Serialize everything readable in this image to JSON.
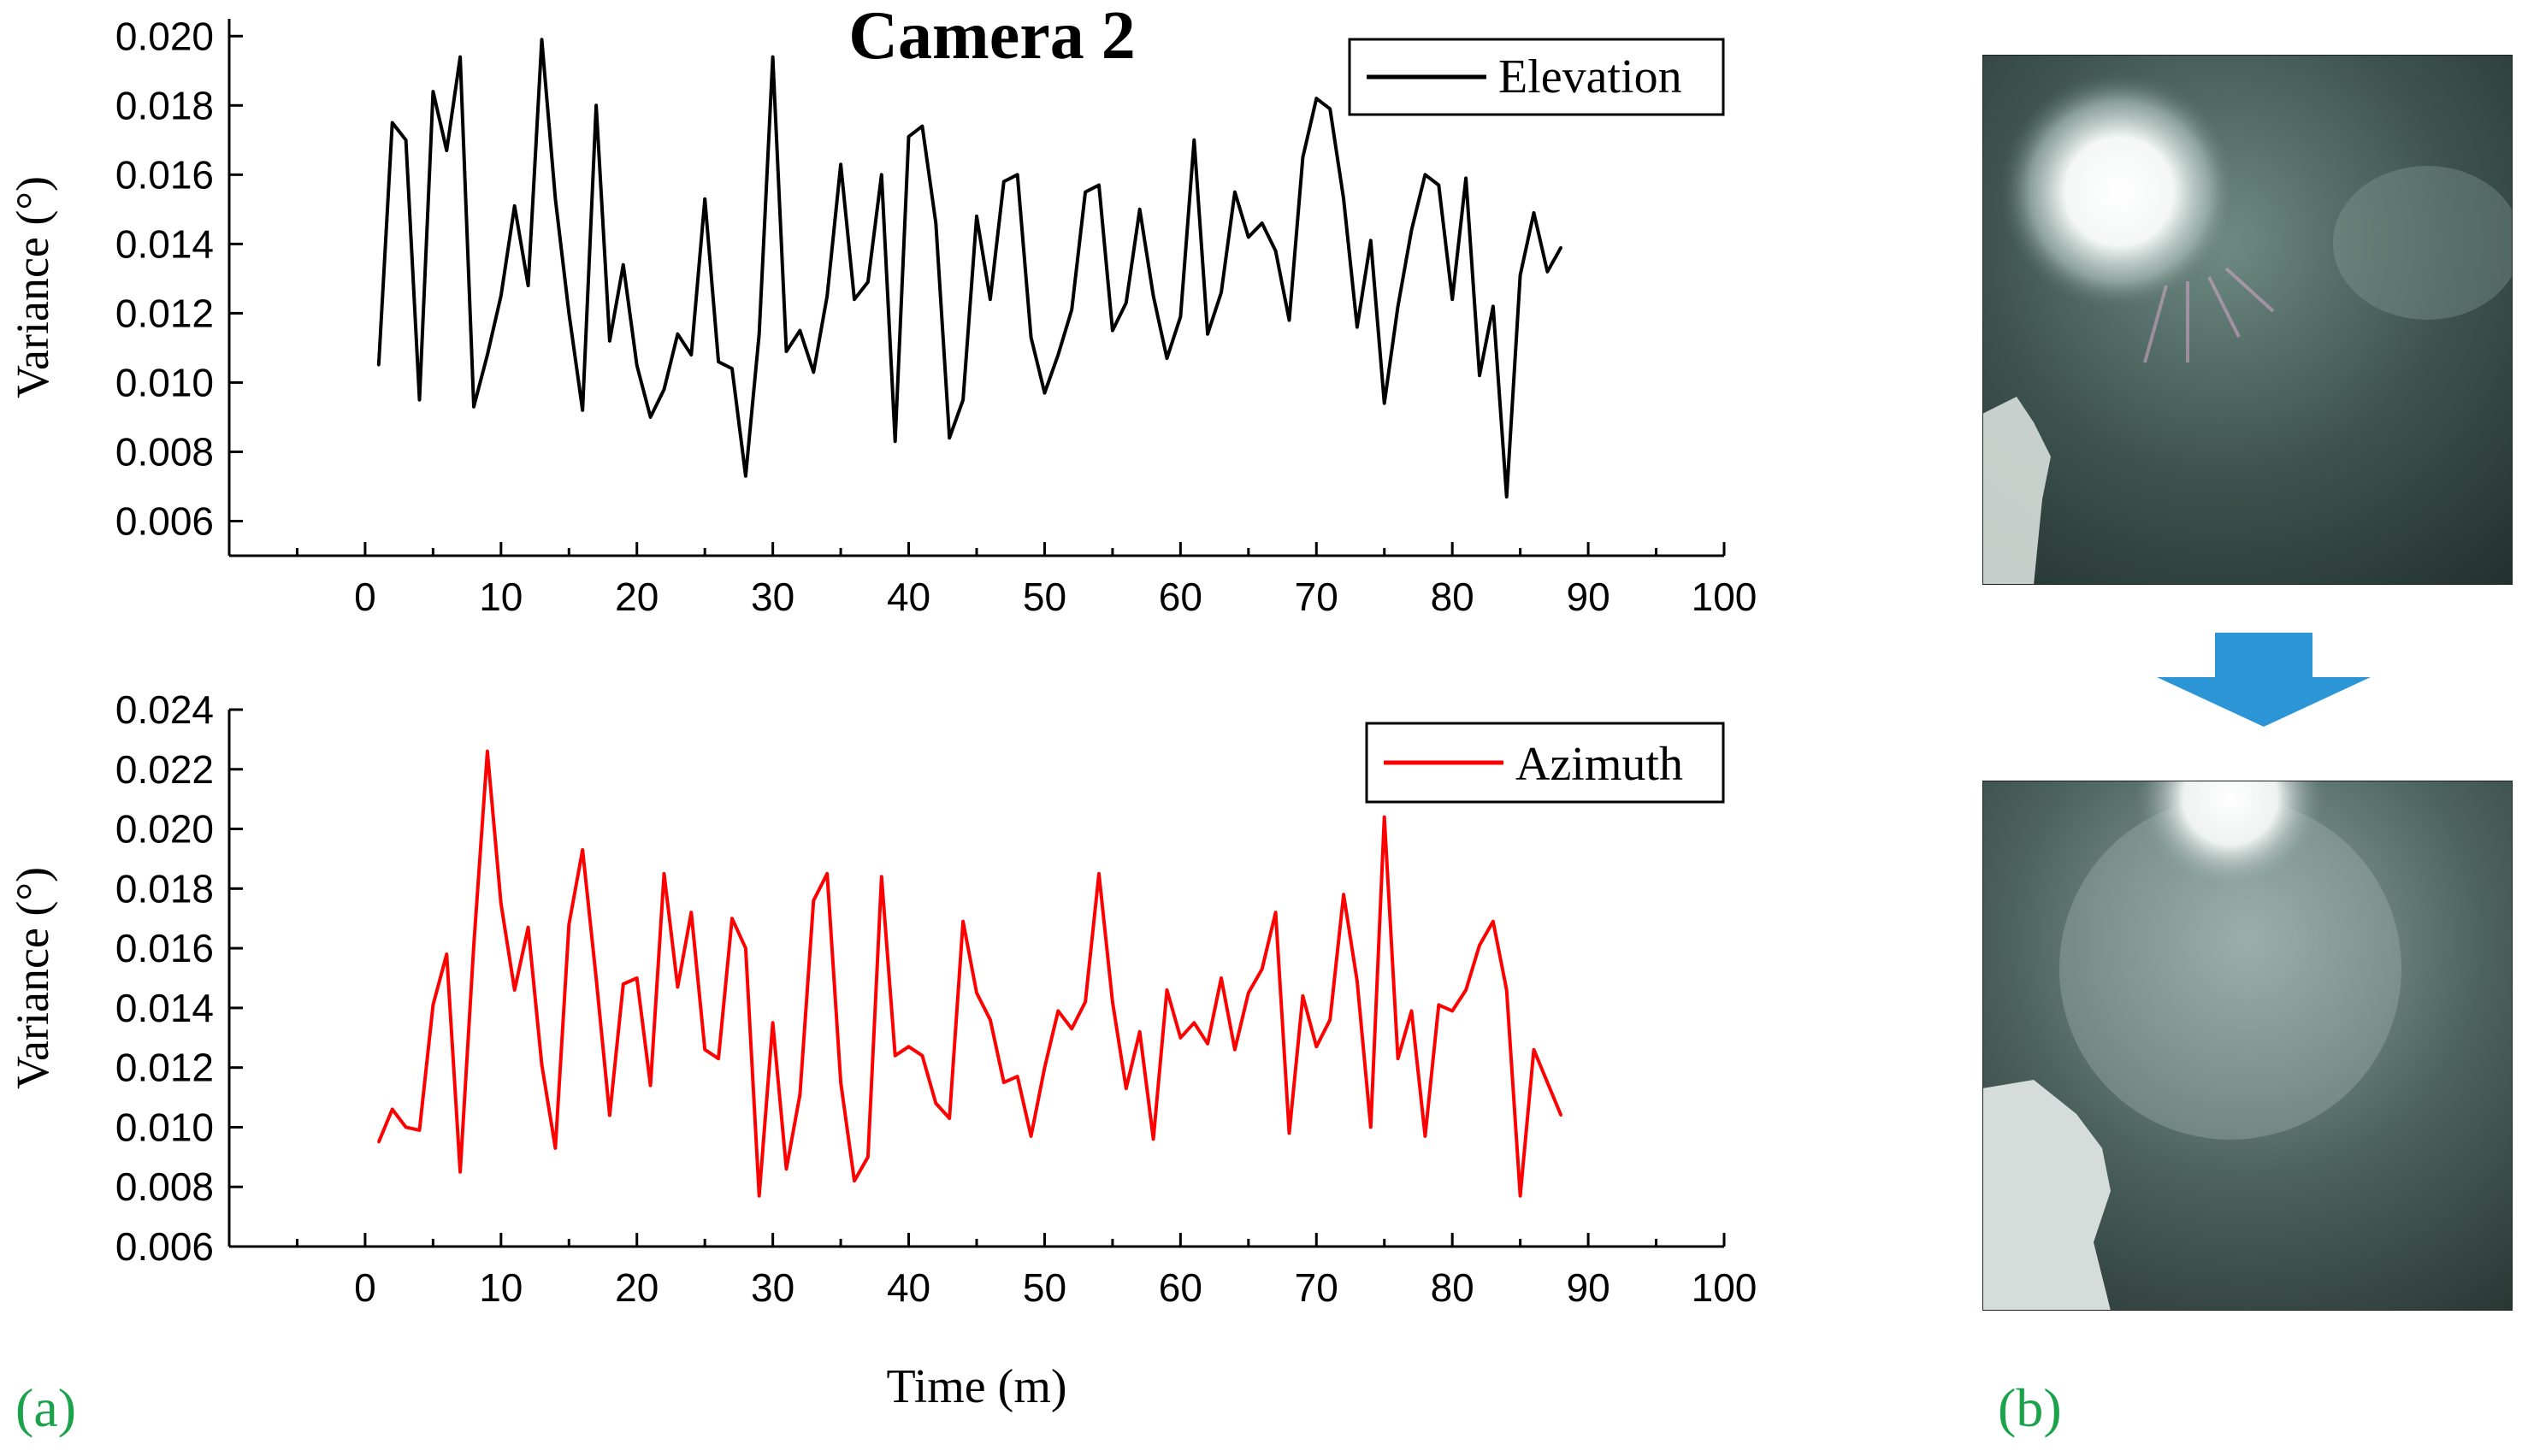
{
  "figure_title": "Camera 2",
  "panel_a_label": "(a)",
  "panel_b_label": "(b)",
  "colors": {
    "elevation": "#000000",
    "azimuth": "#ff0000",
    "arrow": "#2b95d6",
    "panel_label": "#1aa34a"
  },
  "chart_data": [
    {
      "type": "line",
      "title": "Camera 2",
      "xlabel": "",
      "ylabel": "Variance (°)",
      "xlim": [
        -10,
        100
      ],
      "ylim": [
        0.005,
        0.0205
      ],
      "xticks": [
        0,
        10,
        20,
        30,
        40,
        50,
        60,
        70,
        80,
        90,
        100
      ],
      "yticks": [
        0.006,
        0.008,
        0.01,
        0.012,
        0.014,
        0.016,
        0.018,
        0.02
      ],
      "tick_labels_y": [
        "0.006",
        "0.008",
        "0.010",
        "0.012",
        "0.014",
        "0.016",
        "0.018",
        "0.020"
      ],
      "tick_labels_x": [
        "0",
        "10",
        "20",
        "30",
        "40",
        "50",
        "60",
        "70",
        "80",
        "90",
        "100"
      ],
      "legend": "top-right",
      "series": [
        {
          "name": "Elevation",
          "color": "#000000",
          "x": [
            1,
            2,
            3,
            4,
            5,
            6,
            7,
            8,
            9,
            10,
            11,
            12,
            13,
            14,
            15,
            16,
            17,
            18,
            19,
            20,
            21,
            22,
            23,
            24,
            25,
            26,
            27,
            28,
            29,
            30,
            31,
            32,
            33,
            34,
            35,
            36,
            37,
            38,
            39,
            40,
            41,
            42,
            43,
            44,
            45,
            46,
            47,
            48,
            49,
            50,
            51,
            52,
            53,
            54,
            55,
            56,
            57,
            58,
            59,
            60,
            61,
            62,
            63,
            64,
            65,
            66,
            67,
            68,
            69,
            70,
            71,
            72,
            73,
            74,
            75,
            76,
            77,
            78,
            79,
            80,
            81,
            82,
            83,
            84,
            85,
            86,
            87,
            88
          ],
          "values": [
            0.0105,
            0.0175,
            0.017,
            0.0095,
            0.0184,
            0.0167,
            0.0194,
            0.0093,
            0.0108,
            0.0125,
            0.0151,
            0.0128,
            0.0199,
            0.0153,
            0.012,
            0.0092,
            0.018,
            0.0112,
            0.0134,
            0.0105,
            0.009,
            0.0098,
            0.0114,
            0.0108,
            0.0153,
            0.0106,
            0.0104,
            0.0073,
            0.0114,
            0.0194,
            0.0109,
            0.0115,
            0.0103,
            0.0125,
            0.0163,
            0.0124,
            0.0129,
            0.016,
            0.0083,
            0.0171,
            0.0174,
            0.0146,
            0.0084,
            0.0095,
            0.0148,
            0.0124,
            0.0158,
            0.016,
            0.0113,
            0.0097,
            0.0108,
            0.0121,
            0.0155,
            0.0157,
            0.0115,
            0.0123,
            0.015,
            0.0125,
            0.0107,
            0.0119,
            0.017,
            0.0114,
            0.0126,
            0.0155,
            0.0142,
            0.0146,
            0.0138,
            0.0118,
            0.0165,
            0.0182,
            0.0179,
            0.0153,
            0.0116,
            0.0141,
            0.0094,
            0.0122,
            0.0144,
            0.016,
            0.0157,
            0.0124,
            0.0159,
            0.0102,
            0.0122,
            0.0067,
            0.0131,
            0.0149,
            0.0132,
            0.0139
          ]
        }
      ]
    },
    {
      "type": "line",
      "title": "",
      "xlabel": "Time (m)",
      "ylabel": "Variance (°)",
      "xlim": [
        -10,
        100
      ],
      "ylim": [
        0.006,
        0.024
      ],
      "xticks": [
        0,
        10,
        20,
        30,
        40,
        50,
        60,
        70,
        80,
        90,
        100
      ],
      "yticks": [
        0.006,
        0.008,
        0.01,
        0.012,
        0.014,
        0.016,
        0.018,
        0.02,
        0.022,
        0.024
      ],
      "tick_labels_y": [
        "0.006",
        "0.008",
        "0.010",
        "0.012",
        "0.014",
        "0.016",
        "0.018",
        "0.020",
        "0.022",
        "0.024"
      ],
      "tick_labels_x": [
        "0",
        "10",
        "20",
        "30",
        "40",
        "50",
        "60",
        "70",
        "80",
        "90",
        "100"
      ],
      "legend": "top-right",
      "series": [
        {
          "name": "Azimuth",
          "color": "#ff0000",
          "x": [
            1,
            2,
            3,
            4,
            5,
            6,
            7,
            8,
            9,
            10,
            11,
            12,
            13,
            14,
            15,
            16,
            17,
            18,
            19,
            20,
            21,
            22,
            23,
            24,
            25,
            26,
            27,
            28,
            29,
            30,
            31,
            32,
            33,
            34,
            35,
            36,
            37,
            38,
            39,
            40,
            41,
            42,
            43,
            44,
            45,
            46,
            47,
            48,
            49,
            50,
            51,
            52,
            53,
            54,
            55,
            56,
            57,
            58,
            59,
            60,
            61,
            62,
            63,
            64,
            65,
            66,
            67,
            68,
            69,
            70,
            71,
            72,
            73,
            74,
            75,
            76,
            77,
            78,
            79,
            80,
            81,
            82,
            83,
            84,
            85,
            86,
            87,
            88
          ],
          "values": [
            0.0095,
            0.0106,
            0.01,
            0.0099,
            0.0141,
            0.0158,
            0.0085,
            0.0161,
            0.0226,
            0.0175,
            0.0146,
            0.0167,
            0.0121,
            0.0093,
            0.0168,
            0.0193,
            0.015,
            0.0104,
            0.0148,
            0.015,
            0.0114,
            0.0185,
            0.0147,
            0.0172,
            0.0126,
            0.0123,
            0.017,
            0.016,
            0.0077,
            0.0135,
            0.0086,
            0.0111,
            0.0176,
            0.0185,
            0.0115,
            0.0082,
            0.009,
            0.0184,
            0.0124,
            0.0127,
            0.0124,
            0.0108,
            0.0103,
            0.0169,
            0.0145,
            0.0136,
            0.0115,
            0.0117,
            0.0097,
            0.012,
            0.0139,
            0.0133,
            0.0142,
            0.0185,
            0.0142,
            0.0113,
            0.0132,
            0.0096,
            0.0146,
            0.013,
            0.0135,
            0.0128,
            0.015,
            0.0126,
            0.0145,
            0.0153,
            0.0172,
            0.0098,
            0.0144,
            0.0127,
            0.0136,
            0.0178,
            0.0149,
            0.01,
            0.0204,
            0.0123,
            0.0139,
            0.0097,
            0.0141,
            0.0139,
            0.0146,
            0.0161,
            0.0169,
            0.0146,
            0.0077,
            0.0126,
            0.0115,
            0.0104
          ]
        }
      ]
    }
  ]
}
